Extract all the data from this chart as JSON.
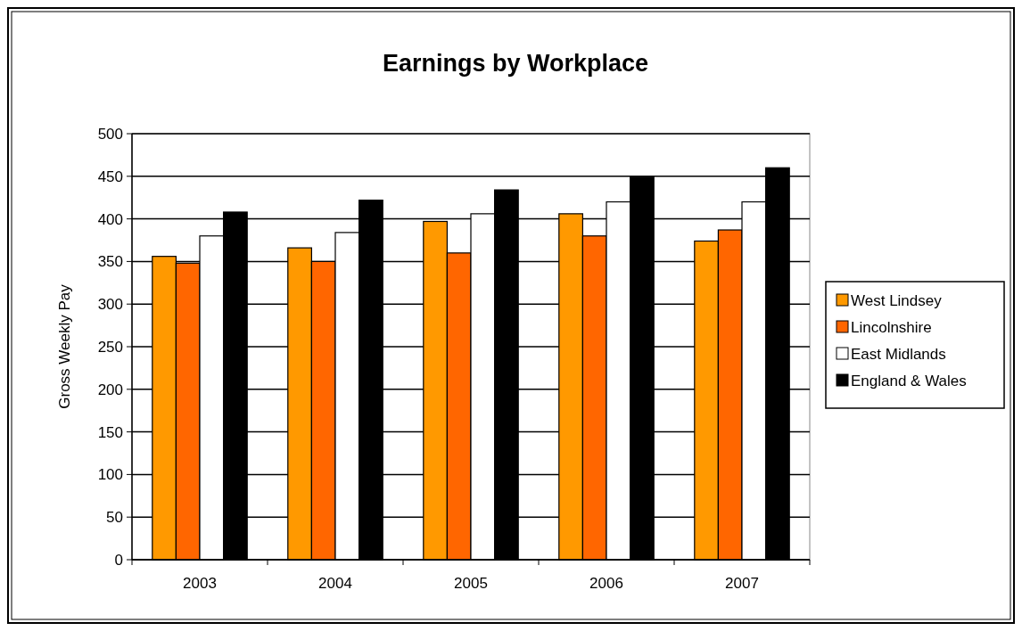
{
  "chart_data": {
    "type": "bar",
    "title": "Earnings by Workplace",
    "ylabel": "Gross Weekly Pay",
    "categories": [
      "2003",
      "2004",
      "2005",
      "2006",
      "2007"
    ],
    "series": [
      {
        "name": "West Lindsey",
        "color": "#ff9900",
        "values": [
          356,
          366,
          397,
          406,
          374
        ]
      },
      {
        "name": "Lincolnshire",
        "color": "#ff6600",
        "values": [
          348,
          350,
          360,
          380,
          387
        ]
      },
      {
        "name": "East Midlands",
        "color": "#ffffff",
        "values": [
          380,
          384,
          406,
          420,
          420
        ]
      },
      {
        "name": "England & Wales",
        "color": "#000000",
        "values": [
          408,
          422,
          434,
          449,
          460
        ]
      }
    ],
    "ylim": [
      0,
      500
    ],
    "yticks": [
      0,
      50,
      100,
      150,
      200,
      250,
      300,
      350,
      400,
      450,
      500
    ],
    "grid": "y",
    "legend": "right"
  }
}
